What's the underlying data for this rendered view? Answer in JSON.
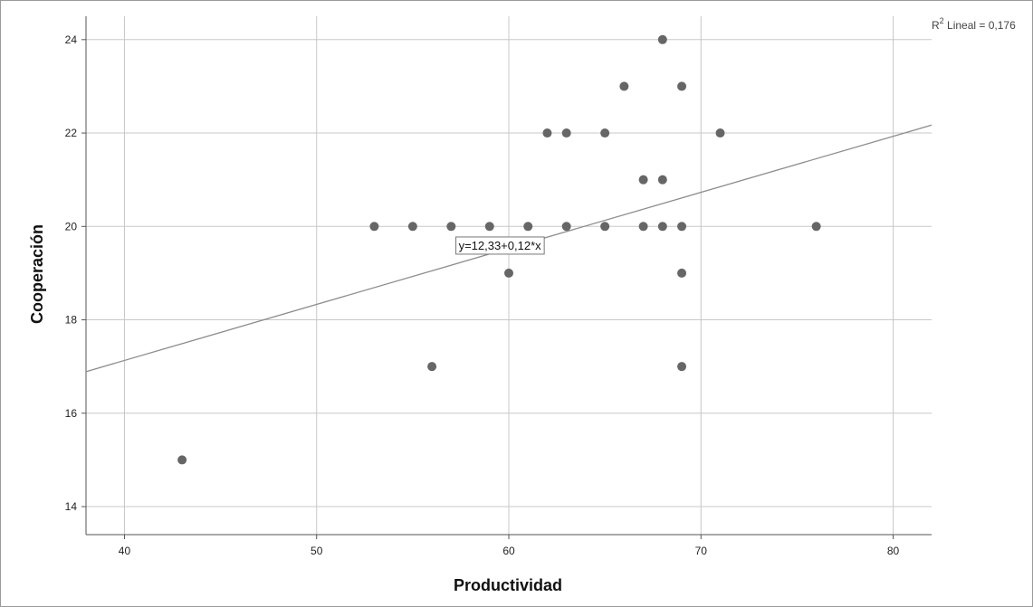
{
  "chart_data": {
    "type": "scatter",
    "xlabel": "Productividad",
    "ylabel": "Cooperación",
    "xlim": [
      38,
      82
    ],
    "ylim": [
      13.4,
      24.5
    ],
    "x_ticks": [
      40,
      50,
      60,
      70,
      80
    ],
    "y_ticks": [
      14,
      16,
      18,
      20,
      22,
      24
    ],
    "grid": true,
    "points": [
      {
        "x": 43,
        "y": 15
      },
      {
        "x": 53,
        "y": 20
      },
      {
        "x": 55,
        "y": 20
      },
      {
        "x": 56,
        "y": 17
      },
      {
        "x": 57,
        "y": 20
      },
      {
        "x": 59,
        "y": 20
      },
      {
        "x": 60,
        "y": 19
      },
      {
        "x": 61,
        "y": 20
      },
      {
        "x": 62,
        "y": 22
      },
      {
        "x": 63,
        "y": 22
      },
      {
        "x": 63,
        "y": 20
      },
      {
        "x": 65,
        "y": 22
      },
      {
        "x": 65,
        "y": 20
      },
      {
        "x": 66,
        "y": 23
      },
      {
        "x": 67,
        "y": 21
      },
      {
        "x": 67,
        "y": 20
      },
      {
        "x": 68,
        "y": 24
      },
      {
        "x": 68,
        "y": 21
      },
      {
        "x": 68,
        "y": 20
      },
      {
        "x": 69,
        "y": 23
      },
      {
        "x": 69,
        "y": 20
      },
      {
        "x": 69,
        "y": 19
      },
      {
        "x": 69,
        "y": 17
      },
      {
        "x": 71,
        "y": 22
      },
      {
        "x": 76,
        "y": 20
      }
    ],
    "fit_line": {
      "intercept": 12.33,
      "slope": 0.12
    },
    "fit_label": "y=12,33+0,12*x",
    "r2_prefix": "R",
    "r2_sup": "2",
    "r2_text": " Lineal = 0,176",
    "colors": {
      "points": "#666666",
      "fit_line": "#8c8c8c",
      "grid": "#c8c8c8",
      "axis": "#555555"
    }
  }
}
